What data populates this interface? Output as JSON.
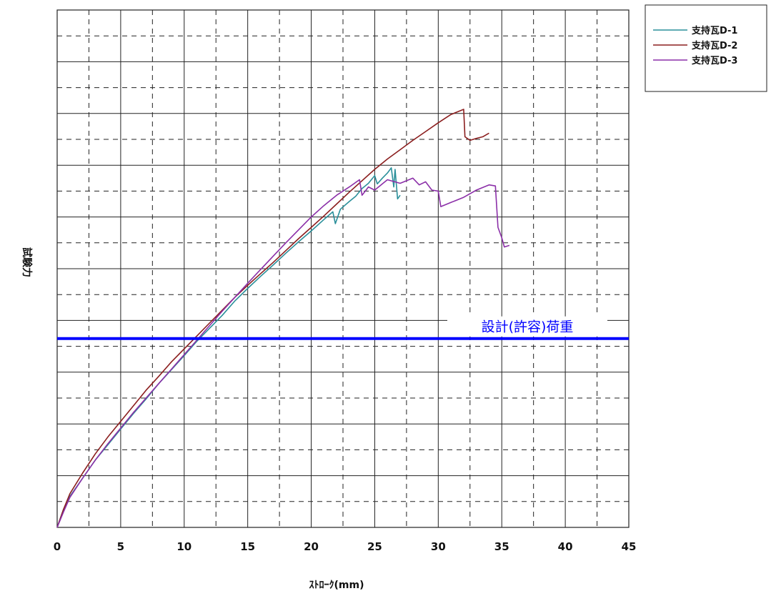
{
  "chart_data": {
    "type": "line",
    "title": "",
    "xlabel": "ｽﾄﾛｰｸ(mm)",
    "ylabel": "試験力",
    "xlim": [
      0,
      45
    ],
    "x_ticks": [
      0,
      5,
      10,
      15,
      20,
      25,
      30,
      35,
      40,
      45
    ],
    "x_tick_labels": [
      "0",
      "5",
      "10",
      "15",
      "20",
      "25",
      "30",
      "35",
      "40",
      "45"
    ],
    "ylim": [
      0,
      10
    ],
    "y_tick_labels_shown": false,
    "grid": true,
    "legend_position": "top-right-outside",
    "series": [
      {
        "name": "支持瓦D-1",
        "color": "#2a8f9a",
        "points": [
          [
            0,
            0
          ],
          [
            0.5,
            0.35
          ],
          [
            1,
            0.6
          ],
          [
            2,
            0.95
          ],
          [
            3,
            1.3
          ],
          [
            4,
            1.6
          ],
          [
            5,
            1.9
          ],
          [
            6,
            2.2
          ],
          [
            7,
            2.48
          ],
          [
            8,
            2.78
          ],
          [
            9,
            3.05
          ],
          [
            10,
            3.32
          ],
          [
            11,
            3.6
          ],
          [
            12,
            3.85
          ],
          [
            13,
            4.1
          ],
          [
            14,
            4.38
          ],
          [
            15,
            4.62
          ],
          [
            16,
            4.85
          ],
          [
            17,
            5.07
          ],
          [
            18,
            5.3
          ],
          [
            19,
            5.52
          ],
          [
            20,
            5.73
          ],
          [
            21,
            5.95
          ],
          [
            21.7,
            6.1
          ],
          [
            21.9,
            5.87
          ],
          [
            22.3,
            6.15
          ],
          [
            23,
            6.3
          ],
          [
            23.5,
            6.4
          ],
          [
            24,
            6.55
          ],
          [
            24.5,
            6.65
          ],
          [
            25,
            6.8
          ],
          [
            25.2,
            6.64
          ],
          [
            25.6,
            6.75
          ],
          [
            26,
            6.85
          ],
          [
            26.3,
            6.95
          ],
          [
            26.5,
            6.58
          ],
          [
            26.6,
            6.92
          ],
          [
            26.8,
            6.35
          ],
          [
            27,
            6.42
          ]
        ]
      },
      {
        "name": "支持瓦D-2",
        "color": "#8b1e1e",
        "points": [
          [
            0,
            0
          ],
          [
            0.5,
            0.35
          ],
          [
            1,
            0.65
          ],
          [
            2,
            1.05
          ],
          [
            3,
            1.42
          ],
          [
            4,
            1.75
          ],
          [
            5,
            2.05
          ],
          [
            6,
            2.35
          ],
          [
            7,
            2.65
          ],
          [
            8,
            2.92
          ],
          [
            9,
            3.2
          ],
          [
            10,
            3.45
          ],
          [
            11,
            3.7
          ],
          [
            12,
            3.95
          ],
          [
            13,
            4.2
          ],
          [
            14,
            4.45
          ],
          [
            15,
            4.68
          ],
          [
            16,
            4.9
          ],
          [
            17,
            5.12
          ],
          [
            18,
            5.35
          ],
          [
            19,
            5.58
          ],
          [
            20,
            5.8
          ],
          [
            21,
            6.02
          ],
          [
            22,
            6.25
          ],
          [
            23,
            6.48
          ],
          [
            24,
            6.7
          ],
          [
            25,
            6.92
          ],
          [
            26,
            7.12
          ],
          [
            27,
            7.3
          ],
          [
            28,
            7.48
          ],
          [
            29,
            7.65
          ],
          [
            30,
            7.82
          ],
          [
            31,
            7.98
          ],
          [
            32,
            8.08
          ],
          [
            32.1,
            7.55
          ],
          [
            32.5,
            7.48
          ],
          [
            33,
            7.52
          ],
          [
            33.5,
            7.55
          ],
          [
            34,
            7.62
          ]
        ]
      },
      {
        "name": "支持瓦D-3",
        "color": "#8b2fa8",
        "points": [
          [
            0,
            0
          ],
          [
            0.5,
            0.3
          ],
          [
            1,
            0.58
          ],
          [
            2,
            0.95
          ],
          [
            3,
            1.3
          ],
          [
            4,
            1.62
          ],
          [
            5,
            1.92
          ],
          [
            6,
            2.22
          ],
          [
            7,
            2.5
          ],
          [
            8,
            2.78
          ],
          [
            9,
            3.06
          ],
          [
            10,
            3.34
          ],
          [
            11,
            3.62
          ],
          [
            12,
            3.9
          ],
          [
            13,
            4.18
          ],
          [
            14,
            4.45
          ],
          [
            15,
            4.72
          ],
          [
            16,
            4.98
          ],
          [
            17,
            5.24
          ],
          [
            18,
            5.5
          ],
          [
            19,
            5.75
          ],
          [
            20,
            6.0
          ],
          [
            21,
            6.22
          ],
          [
            22,
            6.42
          ],
          [
            23,
            6.58
          ],
          [
            23.8,
            6.72
          ],
          [
            24,
            6.42
          ],
          [
            24.5,
            6.58
          ],
          [
            25,
            6.52
          ],
          [
            25.5,
            6.62
          ],
          [
            26,
            6.72
          ],
          [
            27,
            6.65
          ],
          [
            28,
            6.75
          ],
          [
            28.5,
            6.62
          ],
          [
            29,
            6.68
          ],
          [
            29.5,
            6.52
          ],
          [
            30,
            6.5
          ],
          [
            30.2,
            6.2
          ],
          [
            31,
            6.28
          ],
          [
            32,
            6.38
          ],
          [
            33,
            6.52
          ],
          [
            34,
            6.62
          ],
          [
            34.5,
            6.6
          ],
          [
            34.7,
            5.8
          ],
          [
            35,
            5.6
          ],
          [
            35.2,
            5.42
          ],
          [
            35.6,
            5.45
          ]
        ]
      }
    ],
    "reference_line": {
      "label": "設計(許容)荷重",
      "y": 3.65,
      "color": "#0000ff"
    }
  }
}
